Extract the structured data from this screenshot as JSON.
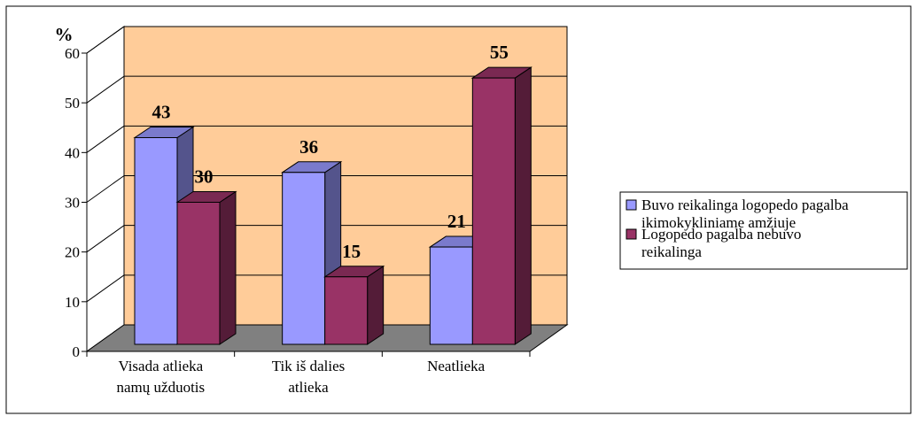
{
  "chart_data": {
    "type": "bar",
    "three_d": true,
    "ylabel": "%",
    "ylim": [
      0,
      60
    ],
    "yticks": [
      0,
      10,
      20,
      30,
      40,
      50,
      60
    ],
    "categories": [
      [
        "Visada atlieka",
        "namų užduotis"
      ],
      [
        "Tik iš dalies",
        "atlieka"
      ],
      [
        "Neatlieka"
      ]
    ],
    "series": [
      {
        "name": [
          "Buvo reikalinga logopedo pagalba",
          "ikimokykliniame amžiuje"
        ],
        "values": [
          43,
          36,
          21
        ],
        "color": "#9999ff"
      },
      {
        "name": [
          "Logopedo pagalba nebuvo",
          "reikalinga"
        ],
        "values": [
          30,
          15,
          55
        ],
        "color": "#993366"
      }
    ],
    "legend_position": "right",
    "grid": true,
    "wall_color": "#ffcc99",
    "floor_color": "#808080"
  }
}
